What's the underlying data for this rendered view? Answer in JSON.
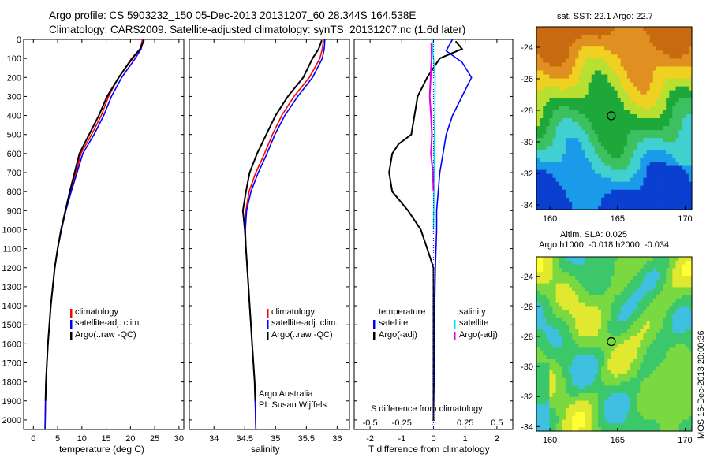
{
  "header": {
    "line1": "Argo profile: CS 5903232_150 05-Dec-2013 20131207_60 28.344S 164.538E",
    "line2": "Climatology: CARS2009. Satellite-adjusted climatology: synTS_20131207.nc (1.6d later)"
  },
  "panels": {
    "temp": {
      "xlabel": "temperature (deg C)",
      "legend": [
        "climatology",
        "satellite-adj. clim.",
        "Argo(..raw -QC)"
      ]
    },
    "sal": {
      "xlabel": "salinity",
      "legend": [
        "climatology",
        "satellite-adj. clim.",
        "Argo(..raw -QC)"
      ],
      "note1": "Argo Australia",
      "note2": "PI: Susan Wijffels"
    },
    "diff": {
      "legend_head_t": "temperature",
      "legend_head_s": "salinity",
      "legend_t": [
        "satellite",
        "Argo(-adj)"
      ],
      "legend_s": [
        "satellite",
        "Argo(-adj)"
      ],
      "top_axis_label": "S difference from climatology",
      "xlabel": "T difference from climatology"
    },
    "sst": {
      "title": "sat. SST: 22.1  Argo: 22.7"
    },
    "sla": {
      "title1": "Altim. SLA: 0.025",
      "title2": "Argo h1000: -0.018 h2000: -0.034"
    },
    "stamp": "IMOS 16-Dec-2013 20:00:36"
  },
  "colors": {
    "climatology": "#ff0000",
    "satellite": "#0000ff",
    "argo": "#000000",
    "sal_satellite": "#00e0e0",
    "sal_argo": "#e000e0"
  },
  "chart_data": [
    {
      "type": "line",
      "xlabel": "temperature (deg C)",
      "ylabel": "",
      "xlim": [
        -2,
        31
      ],
      "ylim": [
        2050,
        0
      ],
      "xticks": [
        0,
        5,
        10,
        15,
        20,
        25,
        30
      ],
      "yticks": [
        0,
        100,
        200,
        300,
        400,
        500,
        600,
        700,
        800,
        900,
        1000,
        1100,
        1200,
        1300,
        1400,
        1500,
        1600,
        1700,
        1800,
        1900,
        2000
      ],
      "series": [
        {
          "name": "climatology",
          "x": [
            22.5,
            22.0,
            20.5,
            17.5,
            15.5,
            14.0,
            12.0,
            9.8,
            8.8,
            7.6,
            6.6,
            5.7,
            5.0,
            4.4,
            4.0,
            3.6,
            3.3,
            3.0,
            2.8,
            2.6,
            2.5,
            2.4
          ],
          "y": [
            0,
            50,
            100,
            200,
            300,
            400,
            500,
            600,
            700,
            800,
            900,
            1000,
            1100,
            1200,
            1300,
            1400,
            1500,
            1600,
            1700,
            1800,
            1900,
            2050
          ]
        },
        {
          "name": "satellite-adj. clim.",
          "x": [
            22.7,
            22.2,
            21.0,
            18.2,
            16.1,
            14.5,
            12.5,
            10.2,
            9.0,
            7.8,
            6.7,
            5.8,
            5.0,
            4.4,
            4.0,
            3.6,
            3.3,
            3.0,
            2.8,
            2.6,
            2.5,
            2.4
          ],
          "y": [
            0,
            50,
            100,
            200,
            300,
            400,
            500,
            600,
            700,
            800,
            900,
            1000,
            1100,
            1200,
            1300,
            1400,
            1500,
            1600,
            1700,
            1800,
            1900,
            2050
          ]
        },
        {
          "name": "Argo(..raw -QC)",
          "x": [
            22.8,
            22.0,
            20.3,
            17.6,
            15.2,
            13.5,
            11.5,
            9.5,
            8.5,
            7.5,
            6.6,
            5.7,
            5.0,
            4.4,
            4.0,
            3.6,
            3.3,
            3.0,
            2.8,
            2.6,
            2.5
          ],
          "y": [
            5,
            50,
            100,
            200,
            300,
            400,
            500,
            600,
            700,
            800,
            900,
            1000,
            1100,
            1200,
            1300,
            1400,
            1500,
            1600,
            1700,
            1800,
            1900
          ]
        }
      ]
    },
    {
      "type": "line",
      "xlabel": "salinity",
      "ylabel": "",
      "xlim": [
        33.6,
        36.2
      ],
      "ylim": [
        2050,
        0
      ],
      "xticks": [
        34,
        34.5,
        35,
        35.5,
        36
      ],
      "series": [
        {
          "name": "climatology",
          "x": [
            35.78,
            35.76,
            35.72,
            35.55,
            35.3,
            35.1,
            34.95,
            34.82,
            34.68,
            34.57,
            34.52,
            34.51,
            34.52,
            34.54,
            34.56,
            34.58,
            34.6,
            34.62,
            34.64,
            34.66,
            34.67,
            34.68
          ],
          "y": [
            0,
            50,
            100,
            200,
            300,
            400,
            500,
            600,
            700,
            800,
            900,
            1000,
            1100,
            1200,
            1300,
            1400,
            1500,
            1600,
            1700,
            1800,
            1900,
            2050
          ]
        },
        {
          "name": "satellite-adj. clim.",
          "x": [
            35.8,
            35.79,
            35.76,
            35.6,
            35.36,
            35.15,
            34.99,
            34.86,
            34.72,
            34.6,
            34.53,
            34.51,
            34.52,
            34.54,
            34.56,
            34.58,
            34.6,
            34.62,
            34.64,
            34.66,
            34.67,
            34.68
          ],
          "y": [
            0,
            50,
            100,
            200,
            300,
            400,
            500,
            600,
            700,
            800,
            900,
            1000,
            1100,
            1200,
            1300,
            1400,
            1500,
            1600,
            1700,
            1800,
            1900,
            2050
          ]
        },
        {
          "name": "Argo(..raw -QC)",
          "x": [
            35.75,
            35.7,
            35.6,
            35.45,
            35.2,
            35.0,
            34.85,
            34.7,
            34.58,
            34.52,
            34.47,
            34.5,
            34.52,
            34.54,
            34.56,
            34.58,
            34.6,
            34.62,
            34.64,
            34.66,
            34.67
          ],
          "y": [
            5,
            50,
            100,
            200,
            300,
            400,
            500,
            600,
            700,
            800,
            900,
            1000,
            1100,
            1200,
            1300,
            1400,
            1500,
            1600,
            1700,
            1800,
            1900
          ]
        }
      ]
    },
    {
      "type": "line",
      "xlabel": "T difference from climatology",
      "x2label": "S difference from climatology",
      "xlim": [
        -2.5,
        2.5
      ],
      "ylim": [
        2050,
        0
      ],
      "xticks": [
        -2,
        -1,
        0,
        1,
        2
      ],
      "x2ticks": [
        -0.5,
        -0.25,
        0,
        0.25,
        0.5
      ],
      "series": [
        {
          "name": "temperature satellite",
          "x": [
            0.6,
            0.5,
            0.4,
            0.9,
            1.2,
            0.9,
            0.6,
            0.4,
            0.3,
            0.2,
            0.15,
            0.1,
            0.1,
            0.08,
            0.06,
            0.05,
            0.04,
            0.03,
            0.02,
            0.02,
            0.0
          ],
          "y": [
            0,
            30,
            60,
            120,
            200,
            300,
            400,
            500,
            600,
            700,
            800,
            900,
            1000,
            1100,
            1200,
            1300,
            1400,
            1500,
            1600,
            1800,
            2000
          ]
        },
        {
          "name": "temperature Argo(-adj)",
          "x": [
            0.7,
            0.9,
            0.2,
            -0.2,
            -0.5,
            -0.6,
            -0.7,
            -1.1,
            -1.3,
            -1.4,
            -1.3,
            -0.8,
            -0.4,
            -0.2,
            0.0,
            0.0,
            0.0,
            0.0,
            0.0
          ],
          "y": [
            10,
            50,
            100,
            200,
            300,
            400,
            500,
            550,
            600,
            700,
            800,
            900,
            1000,
            1100,
            1200,
            1400,
            1600,
            1800,
            2000
          ]
        },
        {
          "name": "salinity satellite",
          "x": [
            -0.05,
            -0.03,
            0.0,
            0.05,
            0.05,
            0.04,
            0.03,
            0.02,
            0.02,
            0.01,
            0.01,
            0.0
          ],
          "y": [
            0,
            50,
            100,
            200,
            300,
            400,
            500,
            600,
            700,
            800,
            900,
            1000
          ]
        },
        {
          "name": "salinity Argo(-adj)",
          "x": [
            -0.07,
            -0.06,
            -0.08,
            -0.09,
            -0.12,
            -0.08,
            -0.05,
            -0.08,
            -0.02,
            0.0
          ],
          "y": [
            20,
            100,
            150,
            200,
            300,
            400,
            500,
            600,
            700,
            800
          ]
        }
      ]
    },
    {
      "type": "heatmap",
      "title": "sat. SST: 22.1  Argo: 22.7",
      "xlim": [
        159,
        170.5
      ],
      "ylim": [
        -34.3,
        -22.7
      ],
      "xticks": [
        160,
        165,
        170
      ],
      "yticks": [
        -24,
        -26,
        -28,
        -30,
        -32,
        -34
      ],
      "marker": {
        "x": 164.538,
        "y": -28.344
      },
      "colormap": [
        "#0a3fd0",
        "#1a9ae8",
        "#40d0d0",
        "#3cc060",
        "#1fa83a",
        "#b8e030",
        "#f0d020",
        "#e09020",
        "#c86a10"
      ]
    },
    {
      "type": "heatmap",
      "title": "Altim. SLA: 0.025",
      "subtitle": "Argo h1000: -0.018 h2000: -0.034",
      "xlim": [
        159,
        170.5
      ],
      "ylim": [
        -34.3,
        -22.7
      ],
      "xticks": [
        160,
        165,
        170
      ],
      "yticks": [
        -24,
        -26,
        -28,
        -30,
        -32,
        -34
      ],
      "marker": {
        "x": 164.538,
        "y": -28.344
      },
      "colormap": [
        "#40c0e0",
        "#3cc86a",
        "#7ad840",
        "#e0e830",
        "#ffff33"
      ]
    }
  ]
}
